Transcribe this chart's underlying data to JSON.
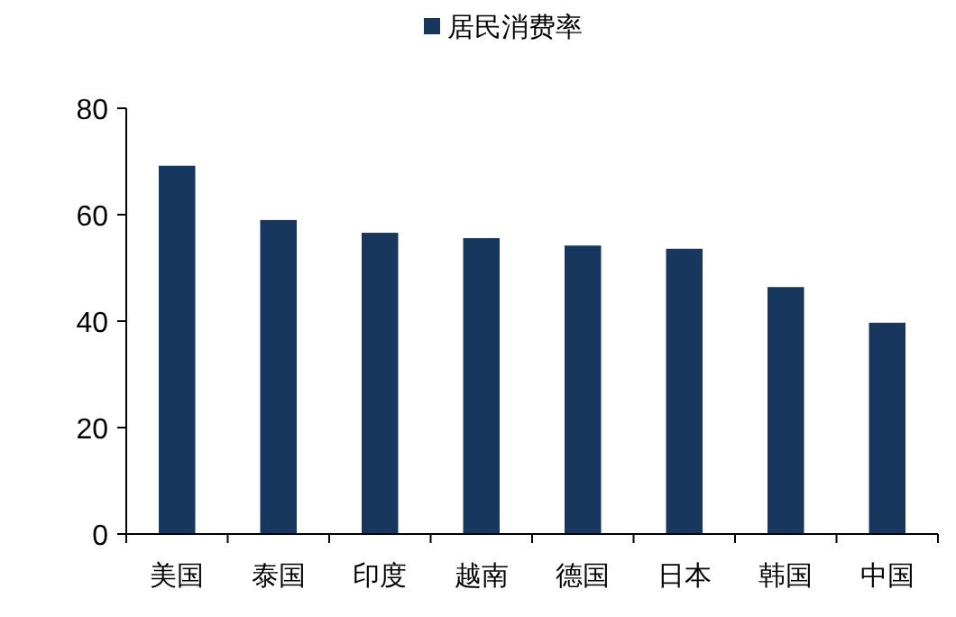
{
  "chart_data": {
    "type": "bar",
    "categories": [
      "美国",
      "泰国",
      "印度",
      "越南",
      "德国",
      "日本",
      "韩国",
      "中国"
    ],
    "series": [
      {
        "name": "居民消费率",
        "color": "#17375e",
        "values": [
          69.2,
          59.0,
          56.6,
          55.6,
          54.2,
          53.6,
          46.4,
          39.7
        ]
      }
    ],
    "ylim": [
      0,
      80
    ],
    "yticks": [
      0,
      20,
      40,
      60,
      80
    ],
    "grid": false,
    "legend": "top"
  }
}
